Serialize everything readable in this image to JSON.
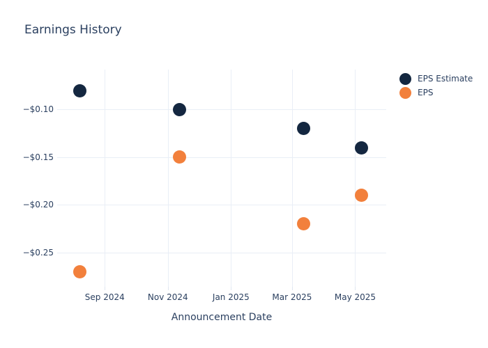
{
  "title": "Earnings History",
  "colors": {
    "background": "#ffffff",
    "text": "#2a3f5f",
    "grid": "#e9eef6",
    "tick": "#dfe6f0",
    "eps_estimate": "#142740",
    "eps": "#f2803c"
  },
  "legend": {
    "items": [
      {
        "label": "EPS Estimate",
        "color": "#142740"
      },
      {
        "label": "EPS",
        "color": "#f2803c"
      }
    ]
  },
  "chart_data": {
    "type": "scatter",
    "title": "Earnings History",
    "xlabel": "Announcement Date",
    "ylabel": "",
    "grid": true,
    "legend_position": "right",
    "x_range": [
      "2024-07-17",
      "2025-05-31"
    ],
    "y_range": [
      -0.286,
      -0.058
    ],
    "x_ticks": [
      {
        "date": "2024-09-01",
        "label": "Sep 2024"
      },
      {
        "date": "2024-11-01",
        "label": "Nov 2024"
      },
      {
        "date": "2025-01-01",
        "label": "Jan 2025"
      },
      {
        "date": "2025-03-01",
        "label": "Mar 2025"
      },
      {
        "date": "2025-05-01",
        "label": "May 2025"
      }
    ],
    "y_ticks": [
      {
        "value": -0.1,
        "label": "−$0.10"
      },
      {
        "value": -0.15,
        "label": "−$0.15"
      },
      {
        "value": -0.2,
        "label": "−$0.20"
      },
      {
        "value": -0.25,
        "label": "−$0.25"
      }
    ],
    "x": [
      "2024-08-08",
      "2024-11-12",
      "2025-03-12",
      "2025-05-07"
    ],
    "series": [
      {
        "name": "EPS Estimate",
        "color": "#142740",
        "values": [
          -0.08,
          -0.1,
          -0.12,
          -0.14
        ]
      },
      {
        "name": "EPS",
        "color": "#f2803c",
        "values": [
          -0.27,
          -0.15,
          -0.22,
          -0.19
        ]
      }
    ]
  }
}
